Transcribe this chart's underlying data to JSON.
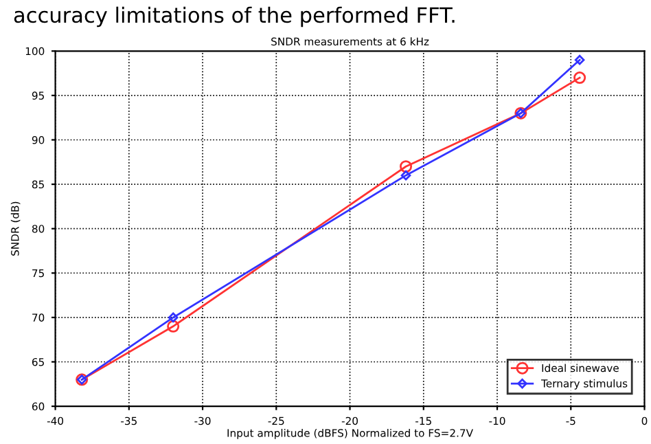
{
  "chart_data": {
    "type": "line",
    "title": "SNDR measurements at 6 kHz",
    "xlabel": "Input amplitude (dBFS) Normalized to FS=2.7V",
    "ylabel": "SNDR (dB)",
    "annotations": [
      "accuracy limitations of the performed FFT."
    ],
    "x": [
      -38.2,
      -32,
      -16.2,
      -8.4,
      -4.4
    ],
    "series": [
      {
        "name": "Ideal sinewave",
        "color": "#ff3333",
        "marker": "circle",
        "values": [
          63,
          69,
          87,
          93,
          97
        ]
      },
      {
        "name": "Ternary stimulus",
        "color": "#3333ff",
        "marker": "diamond",
        "values": [
          63,
          70,
          86,
          93,
          99
        ]
      }
    ],
    "xlim": [
      -40,
      0
    ],
    "xticks": [
      -40,
      -35,
      -30,
      -25,
      -20,
      -15,
      -10,
      -5,
      0
    ],
    "ylim": [
      60,
      100
    ],
    "yticks": [
      60,
      65,
      70,
      75,
      80,
      85,
      90,
      95,
      100
    ],
    "grid": true,
    "legend": "bottom right",
    "line_style": "solid"
  }
}
